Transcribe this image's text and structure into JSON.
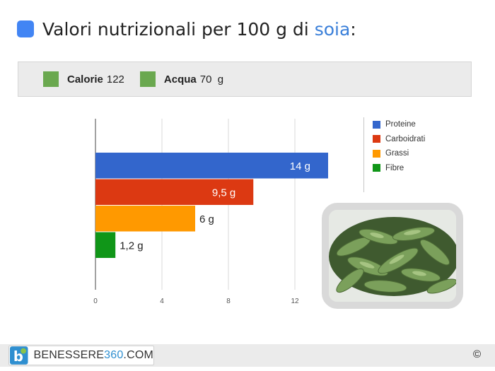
{
  "title": {
    "prefix": "Valori nutrizionali per 100 g di ",
    "food": "soia",
    "suffix": ":",
    "icon": "blue-square-icon",
    "icon_color": "#4285f4"
  },
  "stats": [
    {
      "label": "Calorie",
      "value": "122",
      "color": "#6aa84f"
    },
    {
      "label": "Acqua",
      "value": "70  g",
      "color": "#6aa84f"
    }
  ],
  "chart_data": {
    "type": "bar",
    "orientation": "horizontal",
    "title": "",
    "xlabel": "",
    "ylabel": "",
    "categories": [
      "Proteine",
      "Carboidrati",
      "Grassi",
      "Fibre"
    ],
    "values": [
      14,
      9.5,
      6,
      1.2
    ],
    "data_labels": [
      "14 g",
      "9,5 g",
      "6 g",
      "1,2 g"
    ],
    "colors": [
      "#3366cc",
      "#dc3912",
      "#ff9900",
      "#109618"
    ],
    "data_label_position": [
      "inside",
      "inside",
      "outside",
      "outside"
    ],
    "x_ticks": [
      0,
      4,
      8,
      12
    ],
    "xlim": [
      0,
      15
    ],
    "grid": true,
    "legend": {
      "placement": "right",
      "entries": [
        "Proteine",
        "Carboidrati",
        "Grassi",
        "Fibre"
      ]
    }
  },
  "image": {
    "subject": "edamame-soybean-pods"
  },
  "footer": {
    "brand_main": "BENESSERE",
    "brand_accent": "360",
    "brand_suffix": ".COM",
    "logo_letter": "b",
    "copyright": "©",
    "accent_color": "#2f8fd0"
  }
}
